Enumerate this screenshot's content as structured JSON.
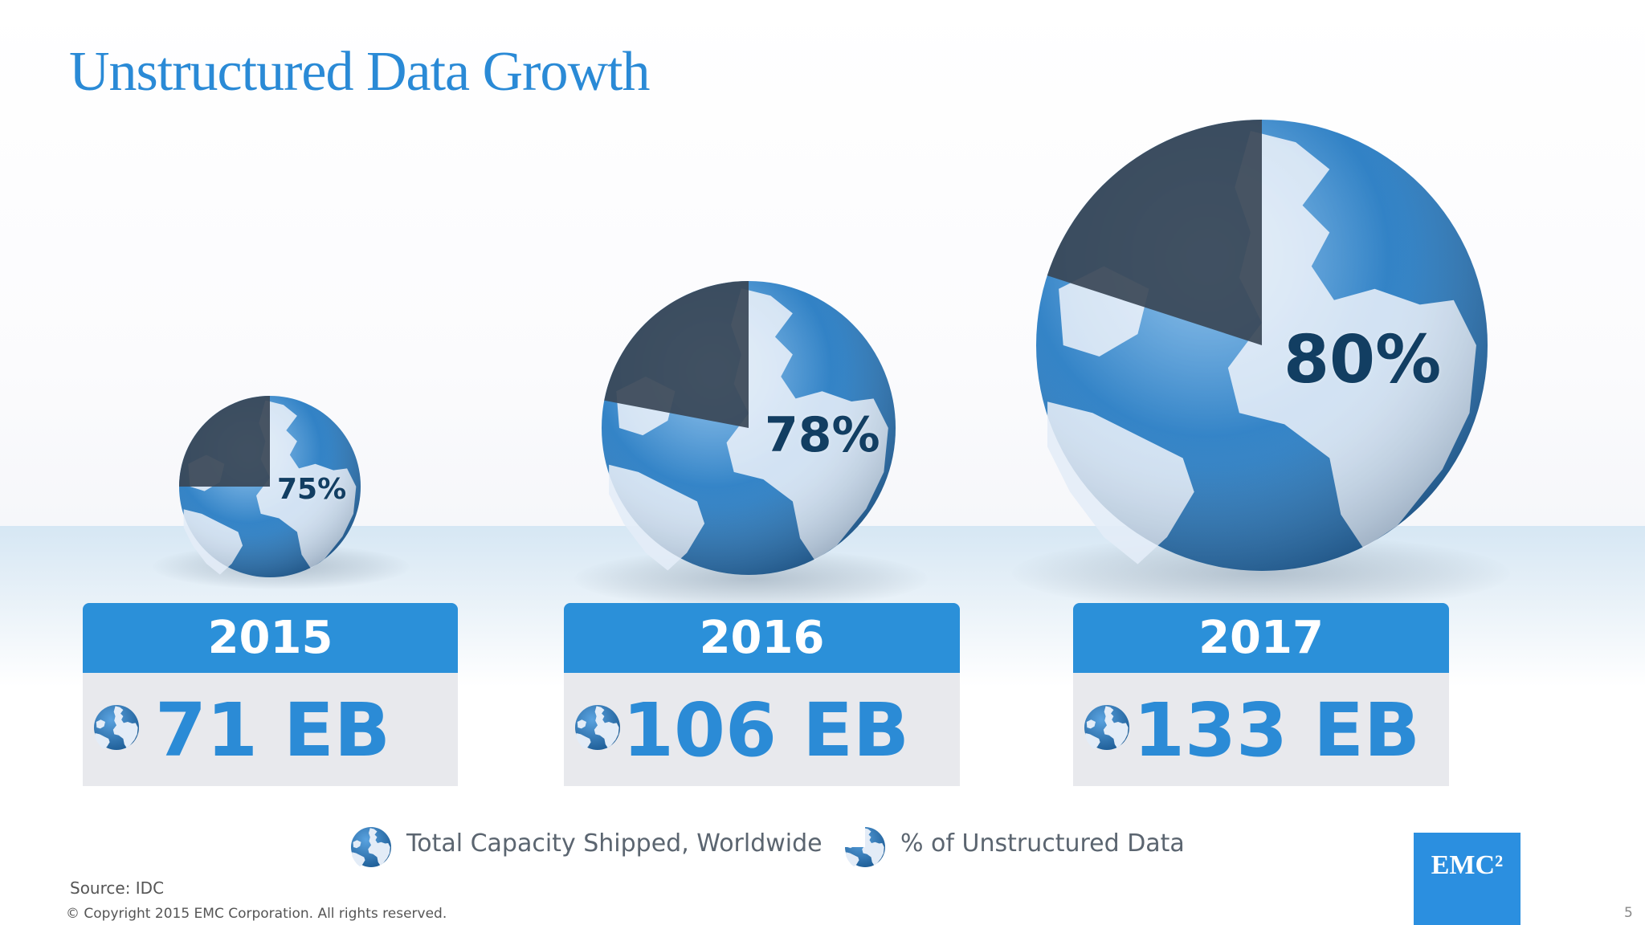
{
  "slide": {
    "title": "Unstructured Data Growth",
    "source": "Source: IDC",
    "copyright": "© Copyright 2015 EMC Corporation. All rights reserved.",
    "page_number": "5",
    "logo_text": "EMC²"
  },
  "legend": {
    "capacity_label": "Total Capacity Shipped, Worldwide",
    "unstructured_label": "% of Unstructured Data"
  },
  "colors": {
    "title": "#2a8ad6",
    "card_header": "#2b90d9",
    "card_body": "#e8e9ed",
    "value_text": "#2b8bd6",
    "ocean": "#2e7fc3",
    "land": "#e3ecf7",
    "pie_slice": "#3a4656",
    "pct_text": "#123e62",
    "logo": "#2b8fe0"
  },
  "chart_data": {
    "type": "pie",
    "title": "Unstructured Data Growth",
    "categories": [
      "2015",
      "2016",
      "2017"
    ],
    "series": [
      {
        "name": "Total Capacity Shipped, Worldwide",
        "values": [
          71,
          106,
          133
        ],
        "labels": [
          "71 EB",
          "106 EB",
          "133 EB"
        ]
      },
      {
        "name": "% of Unstructured Data",
        "values": [
          75,
          78,
          80
        ],
        "labels": [
          "75%",
          "78%",
          "80%"
        ]
      }
    ],
    "legend": "bottom-center"
  }
}
